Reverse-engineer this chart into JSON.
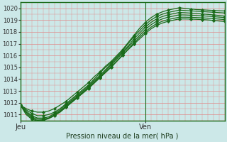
{
  "title": "",
  "xlabel": "Pression niveau de la mer( hPa )",
  "ylabel": "",
  "ylim": [
    1010.5,
    1020.5
  ],
  "xlim": [
    0,
    36
  ],
  "yticks": [
    1011,
    1012,
    1013,
    1014,
    1015,
    1016,
    1017,
    1018,
    1019,
    1020
  ],
  "xtick_positions": [
    0,
    22
  ],
  "xtick_labels": [
    "Jeu",
    "Ven"
  ],
  "vline_x": 22,
  "bg_color": "#cce8e8",
  "grid_color": "#e08888",
  "line_color": "#1a6b1a",
  "marker": "D",
  "markersize": 2.2,
  "linewidth": 0.9,
  "lines": [
    [
      1011.8,
      1011.5,
      1011.3,
      1011.2,
      1011.2,
      1011.3,
      1011.5,
      1011.8,
      1012.1,
      1012.5,
      1012.9,
      1013.3,
      1013.7,
      1014.2,
      1014.6,
      1015.1,
      1015.5,
      1016.0,
      1016.5,
      1017.1,
      1017.7,
      1018.3,
      1018.8,
      1019.2,
      1019.5,
      1019.7,
      1019.85,
      1019.95,
      1020.05,
      1020.0,
      1019.95,
      1019.9,
      1019.88,
      1019.85,
      1019.82,
      1019.8,
      1019.78
    ],
    [
      1011.8,
      1011.4,
      1011.1,
      1010.9,
      1010.9,
      1011.0,
      1011.2,
      1011.5,
      1011.9,
      1012.3,
      1012.7,
      1013.1,
      1013.5,
      1014.0,
      1014.5,
      1015.0,
      1015.4,
      1015.9,
      1016.4,
      1017.0,
      1017.6,
      1018.1,
      1018.6,
      1019.0,
      1019.3,
      1019.5,
      1019.65,
      1019.75,
      1019.85,
      1019.82,
      1019.79,
      1019.76,
      1019.73,
      1019.7,
      1019.67,
      1019.64,
      1019.61
    ],
    [
      1011.8,
      1011.3,
      1010.9,
      1010.7,
      1010.7,
      1010.8,
      1011.1,
      1011.4,
      1011.8,
      1012.2,
      1012.6,
      1013.0,
      1013.4,
      1013.9,
      1014.3,
      1014.8,
      1015.3,
      1015.8,
      1016.3,
      1016.8,
      1017.4,
      1017.9,
      1018.4,
      1018.8,
      1019.1,
      1019.3,
      1019.45,
      1019.55,
      1019.65,
      1019.63,
      1019.6,
      1019.57,
      1019.53,
      1019.49,
      1019.45,
      1019.4,
      1019.35
    ],
    [
      1011.8,
      1011.2,
      1010.8,
      1010.6,
      1010.6,
      1010.7,
      1011.0,
      1011.3,
      1011.7,
      1012.1,
      1012.5,
      1012.9,
      1013.3,
      1013.8,
      1014.2,
      1014.7,
      1015.2,
      1015.7,
      1016.2,
      1016.7,
      1017.2,
      1017.7,
      1018.2,
      1018.6,
      1018.9,
      1019.1,
      1019.25,
      1019.35,
      1019.45,
      1019.44,
      1019.42,
      1019.4,
      1019.37,
      1019.34,
      1019.3,
      1019.26,
      1019.22
    ],
    [
      1011.8,
      1011.1,
      1010.7,
      1010.5,
      1010.55,
      1010.7,
      1010.95,
      1011.25,
      1011.65,
      1012.05,
      1012.45,
      1012.85,
      1013.25,
      1013.7,
      1014.15,
      1014.6,
      1015.05,
      1015.55,
      1016.05,
      1016.55,
      1017.05,
      1017.55,
      1018.0,
      1018.4,
      1018.7,
      1018.9,
      1019.05,
      1019.15,
      1019.25,
      1019.25,
      1019.24,
      1019.22,
      1019.2,
      1019.17,
      1019.13,
      1019.09,
      1019.05
    ],
    [
      1011.8,
      1011.0,
      1010.6,
      1010.45,
      1010.5,
      1010.65,
      1010.9,
      1011.2,
      1011.6,
      1012.0,
      1012.4,
      1012.8,
      1013.2,
      1013.65,
      1014.1,
      1014.55,
      1015.0,
      1015.5,
      1016.0,
      1016.5,
      1016.95,
      1017.4,
      1017.85,
      1018.25,
      1018.55,
      1018.75,
      1018.9,
      1019.0,
      1019.1,
      1019.1,
      1019.09,
      1019.07,
      1019.05,
      1019.02,
      1018.98,
      1018.93,
      1018.88
    ]
  ],
  "marker_step": 2
}
